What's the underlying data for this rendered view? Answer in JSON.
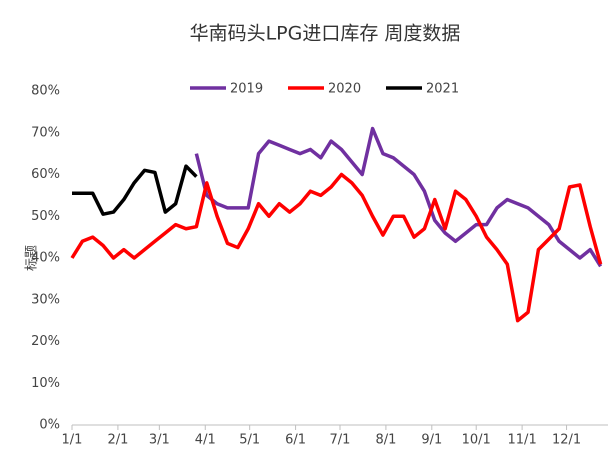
{
  "chart_data": {
    "type": "line",
    "title": "华南码头LPG进口库存 周度数据",
    "y_label": "标题",
    "x": [
      1,
      8,
      15,
      22,
      29,
      36,
      43,
      50,
      57,
      64,
      71,
      78,
      85,
      92,
      99,
      106,
      113,
      120,
      127,
      134,
      141,
      148,
      155,
      162,
      169,
      176,
      183,
      190,
      197,
      204,
      211,
      218,
      225,
      232,
      239,
      246,
      253,
      260,
      267,
      274,
      281,
      288,
      295,
      302,
      309,
      316,
      323,
      330,
      337,
      344,
      351,
      358
    ],
    "xlim": [
      1,
      363
    ],
    "xticks": [
      {
        "value": 1,
        "label": "1/1"
      },
      {
        "value": 32,
        "label": "2/1"
      },
      {
        "value": 60,
        "label": "3/1"
      },
      {
        "value": 91,
        "label": "4/1"
      },
      {
        "value": 121,
        "label": "5/1"
      },
      {
        "value": 152,
        "label": "6/1"
      },
      {
        "value": 182,
        "label": "7/1"
      },
      {
        "value": 213,
        "label": "8/1"
      },
      {
        "value": 244,
        "label": "9/1"
      },
      {
        "value": 274,
        "label": "10/1"
      },
      {
        "value": 305,
        "label": "11/1"
      },
      {
        "value": 335,
        "label": "12/1"
      }
    ],
    "ylim": [
      0,
      80
    ],
    "yticks": [
      {
        "value": 0,
        "label": "0%"
      },
      {
        "value": 10,
        "label": "10%"
      },
      {
        "value": 20,
        "label": "20%"
      },
      {
        "value": 30,
        "label": "30%"
      },
      {
        "value": 40,
        "label": "40%"
      },
      {
        "value": 50,
        "label": "50%"
      },
      {
        "value": 60,
        "label": "60%"
      },
      {
        "value": 70,
        "label": "70%"
      },
      {
        "value": 80,
        "label": "80%"
      }
    ],
    "legend": "top",
    "series": [
      {
        "name": "2019",
        "color": "#7030a0",
        "values": [
          null,
          null,
          null,
          null,
          null,
          null,
          null,
          null,
          null,
          null,
          null,
          null,
          65,
          55,
          53,
          52,
          52,
          52,
          65,
          68,
          67,
          66,
          65,
          66,
          64,
          68,
          66,
          63,
          60,
          71,
          65,
          64,
          62,
          60,
          56,
          49,
          46,
          44,
          46,
          48,
          48,
          52,
          54,
          53,
          52,
          50,
          48,
          44,
          42,
          40,
          42,
          38
        ]
      },
      {
        "name": "2020",
        "color": "#ff0000",
        "values": [
          40,
          44,
          45,
          43,
          40,
          42,
          40,
          42,
          44,
          46,
          48,
          47,
          47.5,
          58,
          50,
          43.5,
          42.5,
          47,
          53,
          50,
          53,
          51,
          53,
          56,
          55,
          57,
          60,
          58,
          55,
          50,
          45.5,
          50,
          50,
          45,
          47,
          54,
          47,
          56,
          54,
          50,
          45,
          42,
          38.5,
          25,
          27,
          42,
          44.5,
          47,
          57,
          57.5,
          47.5,
          38.5
        ]
      },
      {
        "name": "2021",
        "color": "#000000",
        "values": [
          55.5,
          55.5,
          55.5,
          50.5,
          51,
          54,
          58,
          61,
          60.5,
          51,
          53,
          62,
          59.5,
          null,
          null,
          null,
          null,
          null,
          null,
          null,
          null,
          null,
          null,
          null,
          null,
          null,
          null,
          null,
          null,
          null,
          null,
          null,
          null,
          null,
          null,
          null,
          null,
          null,
          null,
          null,
          null,
          null,
          null,
          null,
          null,
          null,
          null,
          null,
          null,
          null,
          null,
          null
        ]
      }
    ]
  }
}
